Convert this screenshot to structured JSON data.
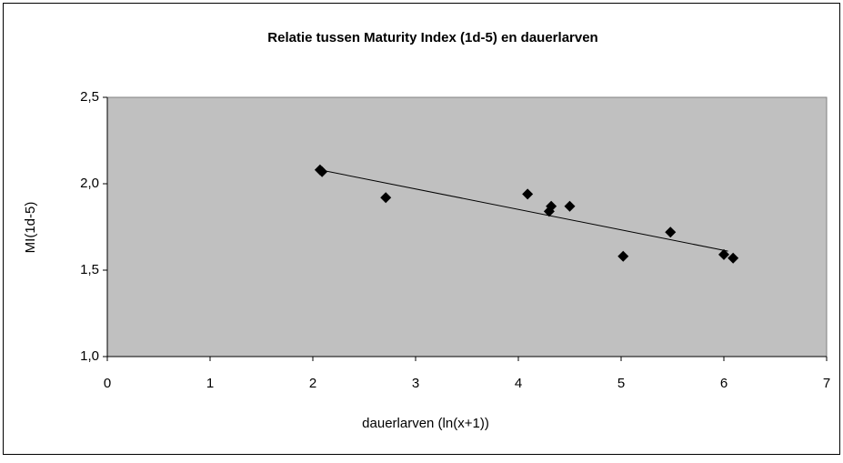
{
  "chart_data": {
    "type": "scatter",
    "title": "Relatie tussen Maturity Index (1d-5) en dauerlarven",
    "x_label": "dauerlarven (ln(x+1))",
    "y_label": "MI(1d-5)",
    "series": [
      {
        "color": "#000000",
        "x": [
          2.07,
          2.09,
          2.71,
          4.09,
          4.3,
          4.32,
          4.5,
          5.02,
          5.48,
          6.0,
          6.09
        ],
        "values": [
          2.08,
          2.07,
          1.92,
          1.94,
          1.84,
          1.87,
          1.87,
          1.58,
          1.72,
          1.59,
          1.57
        ]
      }
    ],
    "trendline": {
      "color": "#000000",
      "x": [
        2.07,
        6.04
      ],
      "values": [
        2.08,
        1.61
      ]
    },
    "xlim": [
      0,
      7
    ],
    "xticks": [
      0,
      1,
      2,
      3,
      4,
      5,
      6,
      7
    ],
    "ylim": [
      1.0,
      2.5
    ],
    "yticks": [
      {
        "value": 1.0,
        "label": "1,0"
      },
      {
        "value": 1.5,
        "label": "1,5"
      },
      {
        "value": 2.0,
        "label": "2,0"
      },
      {
        "value": 2.5,
        "label": "2,5"
      }
    ],
    "grid": false,
    "plot_background": "#c0c0c0"
  }
}
